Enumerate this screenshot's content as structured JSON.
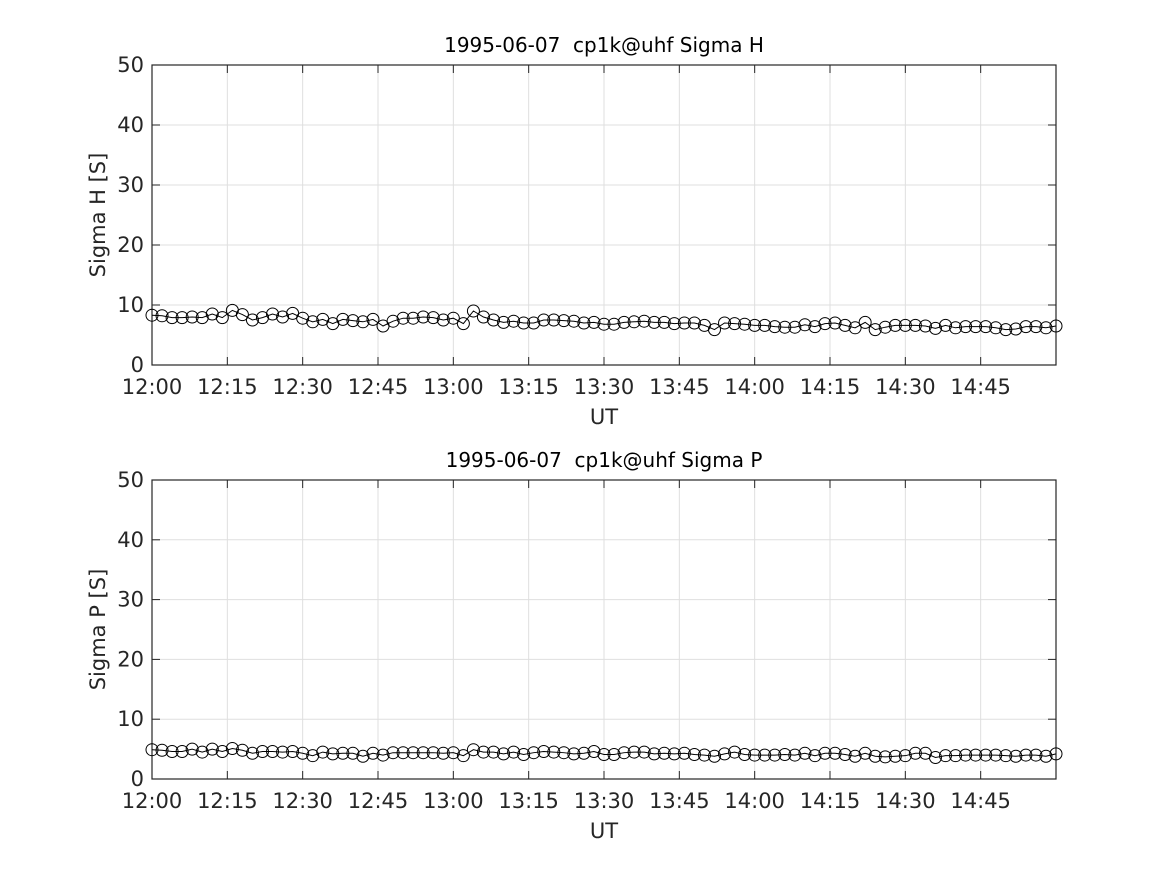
{
  "chart_data": [
    {
      "type": "line",
      "title": "1995-06-07  cp1k@uhf Sigma H",
      "xlabel": "UT",
      "ylabel": "Sigma H [S]",
      "x": [
        720,
        722,
        724,
        726,
        728,
        730,
        732,
        734,
        736,
        738,
        740,
        742,
        744,
        746,
        748,
        750,
        752,
        754,
        756,
        758,
        760,
        762,
        764,
        766,
        768,
        770,
        772,
        774,
        776,
        778,
        780,
        782,
        784,
        786,
        788,
        790,
        792,
        794,
        796,
        798,
        800,
        802,
        804,
        806,
        808,
        810,
        812,
        814,
        816,
        818,
        820,
        822,
        824,
        826,
        828,
        830,
        832,
        834,
        836,
        838,
        840,
        842,
        844,
        846,
        848,
        850,
        852,
        854,
        856,
        858,
        860,
        862,
        864,
        866,
        868,
        870,
        872,
        874,
        876,
        878,
        880,
        882,
        884,
        886,
        888,
        890,
        892,
        894,
        896,
        898,
        900
      ],
      "values": [
        8.3,
        8.2,
        7.9,
        7.9,
        8.0,
        7.9,
        8.5,
        7.9,
        9.1,
        8.4,
        7.5,
        7.9,
        8.5,
        8.0,
        8.6,
        7.8,
        7.2,
        7.6,
        6.9,
        7.6,
        7.4,
        7.2,
        7.6,
        6.5,
        7.3,
        7.8,
        7.8,
        8.0,
        7.9,
        7.5,
        7.8,
        6.9,
        9.0,
        8.0,
        7.5,
        7.1,
        7.3,
        7.0,
        7.0,
        7.5,
        7.5,
        7.4,
        7.3,
        7.0,
        7.1,
        6.8,
        6.8,
        7.1,
        7.2,
        7.3,
        7.1,
        7.1,
        6.9,
        7.0,
        7.0,
        6.6,
        5.9,
        7.0,
        6.9,
        6.8,
        6.6,
        6.6,
        6.4,
        6.3,
        6.3,
        6.7,
        6.4,
        6.9,
        7.0,
        6.6,
        6.2,
        7.1,
        5.9,
        6.3,
        6.6,
        6.6,
        6.6,
        6.5,
        6.1,
        6.6,
        6.2,
        6.4,
        6.4,
        6.4,
        6.2,
        5.9,
        6.0,
        6.4,
        6.4,
        6.2,
        6.5
      ],
      "color": "#000000",
      "marker": "circle",
      "grid": true,
      "xlim": [
        720,
        900
      ],
      "xticks": [
        {
          "value": 720,
          "label": "12:00"
        },
        {
          "value": 735,
          "label": "12:15"
        },
        {
          "value": 750,
          "label": "12:30"
        },
        {
          "value": 765,
          "label": "12:45"
        },
        {
          "value": 780,
          "label": "13:00"
        },
        {
          "value": 795,
          "label": "13:15"
        },
        {
          "value": 810,
          "label": "13:30"
        },
        {
          "value": 825,
          "label": "13:45"
        },
        {
          "value": 840,
          "label": "14:00"
        },
        {
          "value": 855,
          "label": "14:15"
        },
        {
          "value": 870,
          "label": "14:30"
        },
        {
          "value": 885,
          "label": "14:45"
        }
      ],
      "ylim": [
        0,
        50
      ],
      "yticks": [
        0,
        10,
        20,
        30,
        40,
        50
      ]
    },
    {
      "type": "line",
      "title": "1995-06-07  cp1k@uhf Sigma P",
      "xlabel": "UT",
      "ylabel": "Sigma P [S]",
      "x": [
        720,
        722,
        724,
        726,
        728,
        730,
        732,
        734,
        736,
        738,
        740,
        742,
        744,
        746,
        748,
        750,
        752,
        754,
        756,
        758,
        760,
        762,
        764,
        766,
        768,
        770,
        772,
        774,
        776,
        778,
        780,
        782,
        784,
        786,
        788,
        790,
        792,
        794,
        796,
        798,
        800,
        802,
        804,
        806,
        808,
        810,
        812,
        814,
        816,
        818,
        820,
        822,
        824,
        826,
        828,
        830,
        832,
        834,
        836,
        838,
        840,
        842,
        844,
        846,
        848,
        850,
        852,
        854,
        856,
        858,
        860,
        862,
        864,
        866,
        868,
        870,
        872,
        874,
        876,
        878,
        880,
        882,
        884,
        886,
        888,
        890,
        892,
        894,
        896,
        898,
        900
      ],
      "values": [
        4.9,
        4.8,
        4.6,
        4.6,
        5.0,
        4.5,
        5.0,
        4.6,
        5.1,
        4.8,
        4.3,
        4.6,
        4.6,
        4.5,
        4.6,
        4.3,
        3.9,
        4.5,
        4.2,
        4.3,
        4.3,
        3.8,
        4.3,
        4.0,
        4.4,
        4.4,
        4.4,
        4.4,
        4.4,
        4.3,
        4.4,
        3.9,
        4.9,
        4.5,
        4.5,
        4.2,
        4.5,
        4.1,
        4.4,
        4.6,
        4.5,
        4.4,
        4.2,
        4.3,
        4.6,
        4.1,
        4.1,
        4.4,
        4.5,
        4.5,
        4.2,
        4.3,
        4.2,
        4.3,
        4.1,
        4.0,
        3.8,
        4.2,
        4.5,
        4.1,
        4.0,
        4.0,
        4.0,
        4.1,
        4.0,
        4.3,
        3.9,
        4.3,
        4.3,
        4.1,
        3.8,
        4.3,
        3.8,
        3.7,
        3.8,
        3.9,
        4.3,
        4.3,
        3.6,
        3.9,
        3.9,
        4.0,
        4.0,
        4.0,
        4.0,
        3.9,
        3.8,
        4.0,
        4.0,
        3.8,
        4.2
      ],
      "color": "#000000",
      "marker": "circle",
      "grid": true,
      "xlim": [
        720,
        900
      ],
      "xticks": [
        {
          "value": 720,
          "label": "12:00"
        },
        {
          "value": 735,
          "label": "12:15"
        },
        {
          "value": 750,
          "label": "12:30"
        },
        {
          "value": 765,
          "label": "12:45"
        },
        {
          "value": 780,
          "label": "13:00"
        },
        {
          "value": 795,
          "label": "13:15"
        },
        {
          "value": 810,
          "label": "13:30"
        },
        {
          "value": 825,
          "label": "13:45"
        },
        {
          "value": 840,
          "label": "14:00"
        },
        {
          "value": 855,
          "label": "14:15"
        },
        {
          "value": 870,
          "label": "14:30"
        },
        {
          "value": 885,
          "label": "14:45"
        }
      ],
      "ylim": [
        0,
        50
      ],
      "yticks": [
        0,
        10,
        20,
        30,
        40,
        50
      ]
    }
  ]
}
